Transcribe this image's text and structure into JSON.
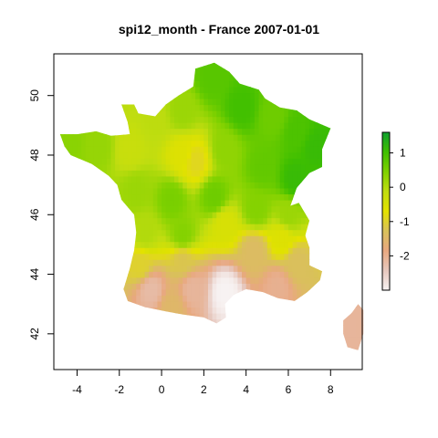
{
  "chart_data": {
    "type": "heatmap",
    "title": "spi12_month - France 2007-01-01",
    "xlabel": "",
    "ylabel": "",
    "xlim": [
      -5.1,
      9.5
    ],
    "ylim": [
      40.8,
      51.4
    ],
    "x_ticks": [
      -4,
      -2,
      0,
      2,
      4,
      6,
      8
    ],
    "y_ticks": [
      42,
      44,
      46,
      48,
      50
    ],
    "grid": false,
    "legend": {
      "position": "right",
      "ticks": [
        1,
        0,
        -1,
        -2
      ],
      "range": [
        -3,
        1.6
      ],
      "colors": [
        "#f7f2f2",
        "#e6c7bd",
        "#e8a880",
        "#d9c15a",
        "#e3e200",
        "#c0dd10",
        "#7fd100",
        "#3fbf00",
        "#0e9f2e"
      ]
    },
    "regions": [
      {
        "lon": -4.4,
        "lat": 48.4,
        "spi": 0.35
      },
      {
        "lon": -3.0,
        "lat": 48.3,
        "spi": 0.25
      },
      {
        "lon": -1.5,
        "lat": 48.2,
        "spi": -0.25
      },
      {
        "lon": -0.3,
        "lat": 49.2,
        "spi": -0.1
      },
      {
        "lon": 1.0,
        "lat": 49.5,
        "spi": 0.2
      },
      {
        "lon": 2.4,
        "lat": 50.6,
        "spi": 0.8
      },
      {
        "lon": 3.8,
        "lat": 49.6,
        "spi": 1.0
      },
      {
        "lon": 5.3,
        "lat": 49.3,
        "spi": 0.6
      },
      {
        "lon": 6.4,
        "lat": 48.8,
        "spi": 0.9
      },
      {
        "lon": 7.3,
        "lat": 48.3,
        "spi": 1.1
      },
      {
        "lon": 1.0,
        "lat": 48.0,
        "spi": -0.6
      },
      {
        "lon": 1.6,
        "lat": 47.8,
        "spi": -0.9
      },
      {
        "lon": 3.0,
        "lat": 48.2,
        "spi": 0.3
      },
      {
        "lon": 4.8,
        "lat": 47.6,
        "spi": 0.7
      },
      {
        "lon": 6.3,
        "lat": 47.2,
        "spi": 1.1
      },
      {
        "lon": -1.2,
        "lat": 46.8,
        "spi": 0.2
      },
      {
        "lon": 0.5,
        "lat": 46.5,
        "spi": 0.5
      },
      {
        "lon": 2.5,
        "lat": 46.6,
        "spi": 0.6
      },
      {
        "lon": 4.5,
        "lat": 46.2,
        "spi": 0.4
      },
      {
        "lon": 6.0,
        "lat": 46.0,
        "spi": 0.2
      },
      {
        "lon": 3.0,
        "lat": 45.7,
        "spi": -0.5
      },
      {
        "lon": 5.7,
        "lat": 45.2,
        "spi": -0.6
      },
      {
        "lon": -0.8,
        "lat": 45.4,
        "spi": 0.0
      },
      {
        "lon": 1.0,
        "lat": 45.3,
        "spi": 0.4
      },
      {
        "lon": 4.4,
        "lat": 44.8,
        "spi": -1.4
      },
      {
        "lon": -1.0,
        "lat": 44.3,
        "spi": -1.0
      },
      {
        "lon": 1.0,
        "lat": 44.5,
        "spi": -1.2
      },
      {
        "lon": 6.4,
        "lat": 44.4,
        "spi": -1.3
      },
      {
        "lon": -0.5,
        "lat": 43.5,
        "spi": -2.2
      },
      {
        "lon": 1.5,
        "lat": 43.5,
        "spi": -2.1
      },
      {
        "lon": 5.5,
        "lat": 43.6,
        "spi": -2.0
      },
      {
        "lon": 3.0,
        "lat": 43.4,
        "spi": -3.0
      },
      {
        "lon": 0.5,
        "lat": 42.9,
        "spi": -1.5
      },
      {
        "lon": 9.0,
        "lat": 42.2,
        "spi": -2.1
      }
    ]
  }
}
